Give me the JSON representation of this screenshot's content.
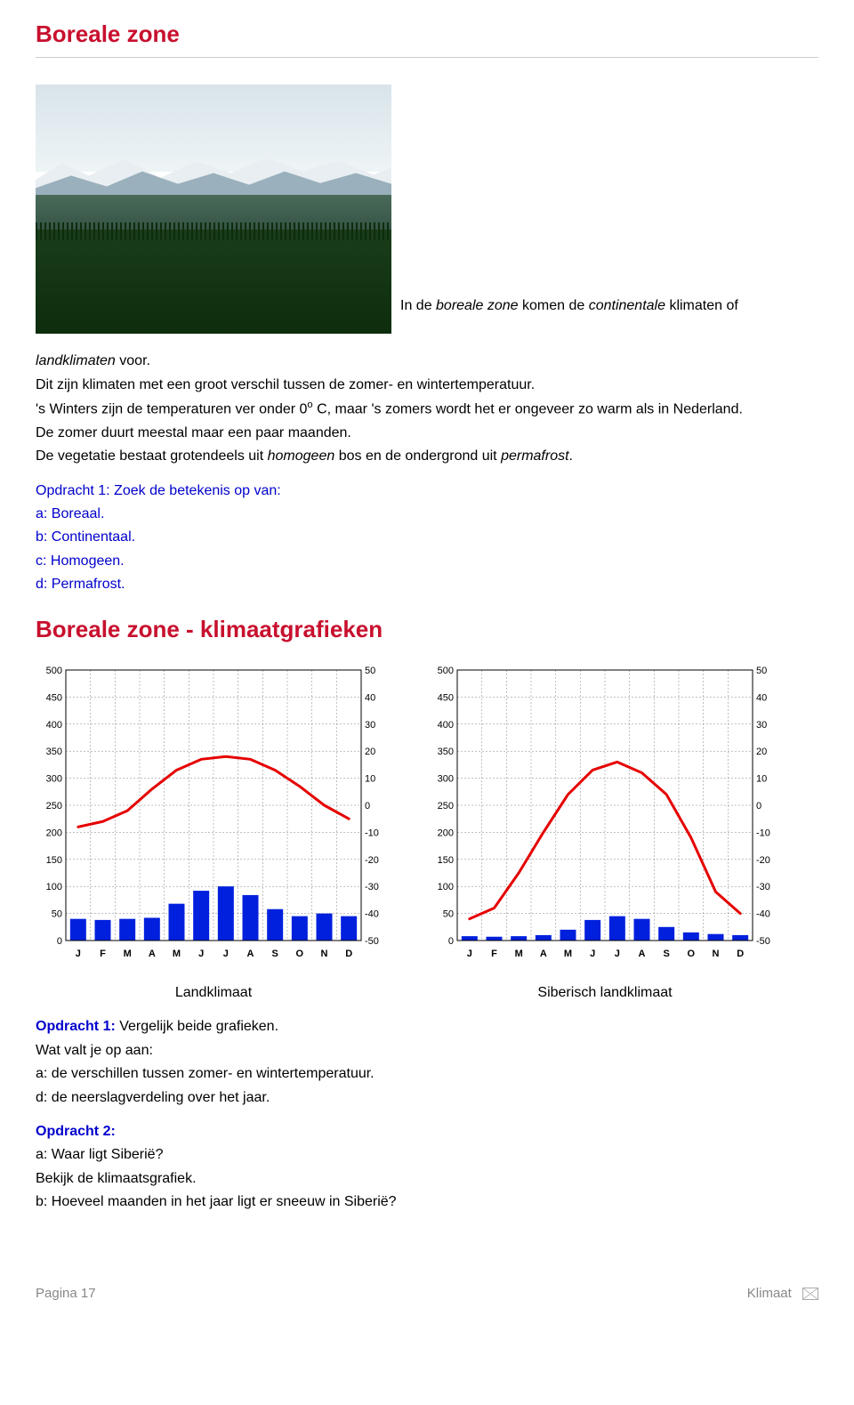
{
  "title1": "Boreale zone",
  "intro_caption_pre": "In de ",
  "intro_caption_it1": "boreale zone",
  "intro_caption_mid": " komen de ",
  "intro_caption_it2": "continentale",
  "intro_caption_post": " klimaten of",
  "p1_it": "landklimaten",
  "p1_rest": " voor.",
  "p2": "Dit zijn klimaten met een groot verschil tussen de zomer- en wintertemperatuur.",
  "p3_a": "'s Winters zijn de temperaturen ver onder 0",
  "p3_sup": "o",
  "p3_b": " C, maar 's zomers wordt het er ongeveer zo warm als in Nederland.",
  "p4": "De zomer duurt meestal maar een paar maanden.",
  "p5_a": "De vegetatie bestaat grotendeels uit ",
  "p5_it1": "homogeen",
  "p5_b": " bos en de ondergrond uit ",
  "p5_it2": "permafrost",
  "p5_c": ".",
  "opdracht1_title": "Opdracht 1: Zoek de betekenis op van:",
  "opdracht1_a": "a: Boreaal.",
  "opdracht1_b": "b: Continentaal.",
  "opdracht1_c": "c: Homogeen.",
  "opdracht1_d": "d: Permafrost.",
  "title2": "Boreale zone - klimaatgrafieken",
  "chart_common": {
    "months": [
      "J",
      "F",
      "M",
      "A",
      "M",
      "J",
      "J",
      "A",
      "S",
      "O",
      "N",
      "D"
    ],
    "y_left_ticks": [
      0,
      50,
      100,
      150,
      200,
      250,
      300,
      350,
      400,
      450,
      500
    ],
    "y_right_ticks": [
      -50,
      -40,
      -30,
      -20,
      -10,
      0,
      10,
      20,
      30,
      40,
      50
    ],
    "grid_color": "#808080",
    "bar_color": "#0020dd",
    "line_color": "#e60000",
    "line_width": 3,
    "bar_width_ratio": 0.65,
    "plot_bg": "#ffffff",
    "axis_font_size": 11,
    "left_axis_max": 500,
    "right_axis_min": -50,
    "right_axis_max": 50
  },
  "chart1": {
    "caption": "Landklimaat",
    "temps": [
      -8,
      -6,
      -2,
      6,
      13,
      17,
      18,
      17,
      13,
      7,
      0,
      -5
    ],
    "precip": [
      40,
      38,
      40,
      42,
      68,
      92,
      100,
      84,
      58,
      45,
      50,
      45
    ]
  },
  "chart2": {
    "caption": "Siberisch landklimaat",
    "temps": [
      -42,
      -38,
      -25,
      -10,
      4,
      13,
      16,
      12,
      4,
      -12,
      -32,
      -40
    ],
    "precip": [
      8,
      7,
      8,
      10,
      20,
      38,
      45,
      40,
      25,
      15,
      12,
      10
    ]
  },
  "opdracht_b1_label": "Opdracht 1:",
  "opdracht_b1_rest": " Vergelijk beide grafieken.",
  "opdracht_b1_l2": "Wat valt je op aan:",
  "opdracht_b1_l3": "a: de verschillen tussen zomer- en wintertemperatuur.",
  "opdracht_b1_l4": "d: de neerslagverdeling over het jaar.",
  "opdracht_b2_label": "Opdracht 2:",
  "opdracht_b2_l1": "a: Waar ligt Siberië?",
  "opdracht_b2_l2": "Bekijk de klimaatsgrafiek.",
  "opdracht_b2_l3": "b: Hoeveel maanden in het jaar ligt er sneeuw in Siberië?",
  "footer_left": "Pagina 17",
  "footer_right": "Klimaat"
}
